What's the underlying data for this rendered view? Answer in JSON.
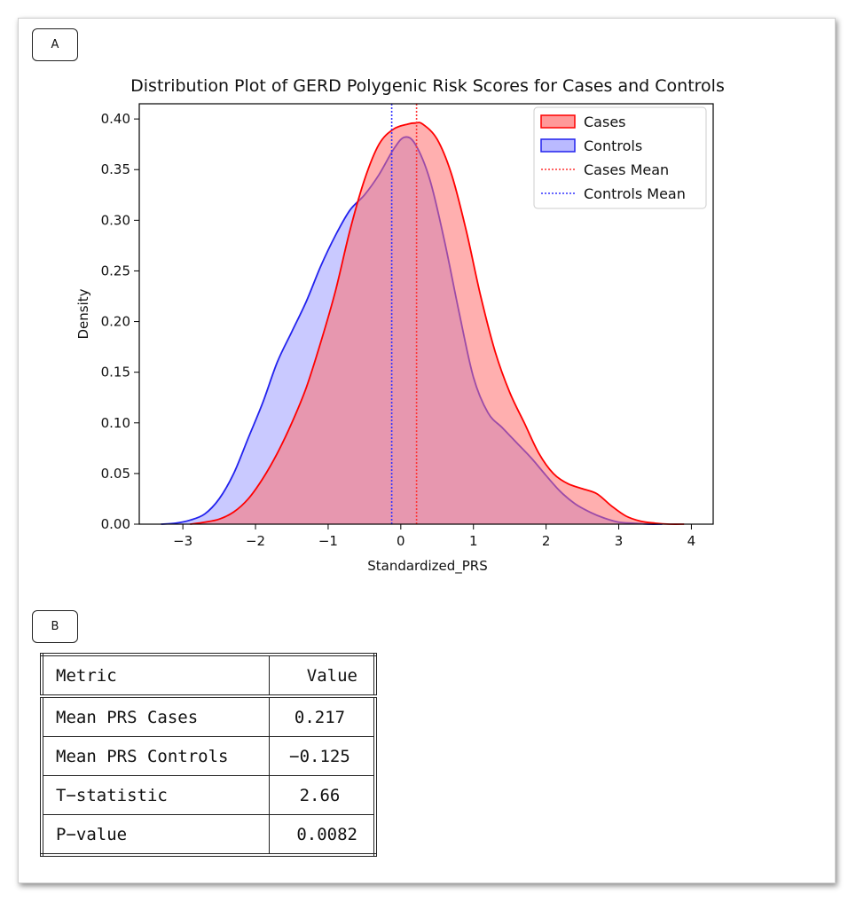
{
  "panels": {
    "a_label": "A",
    "b_label": "B"
  },
  "chart_data": {
    "type": "area",
    "title": "Distribution Plot of GERD Polygenic Risk Scores for Cases and Controls",
    "xlabel": "Standardized_PRS",
    "ylabel": "Density",
    "xlim": [
      -3.6,
      4.3
    ],
    "ylim": [
      0,
      0.415
    ],
    "xticks": [
      -3,
      -2,
      -1,
      0,
      1,
      2,
      3,
      4
    ],
    "xtick_labels": [
      "−3",
      "−2",
      "−1",
      "0",
      "1",
      "2",
      "3",
      "4"
    ],
    "yticks": [
      0.0,
      0.05,
      0.1,
      0.15,
      0.2,
      0.25,
      0.3,
      0.35,
      0.4
    ],
    "ytick_labels": [
      "0.00",
      "0.05",
      "0.10",
      "0.15",
      "0.20",
      "0.25",
      "0.30",
      "0.35",
      "0.40"
    ],
    "legend_position": "top-right",
    "grid": false,
    "series": [
      {
        "name": "Cases",
        "color": "#ff0000",
        "fill": "#ff6e6e",
        "x": [
          -2.9,
          -2.7,
          -2.5,
          -2.3,
          -2.1,
          -1.9,
          -1.7,
          -1.5,
          -1.3,
          -1.1,
          -0.9,
          -0.7,
          -0.5,
          -0.3,
          -0.1,
          0.1,
          0.2,
          0.3,
          0.5,
          0.7,
          0.9,
          1.1,
          1.3,
          1.5,
          1.7,
          1.9,
          2.1,
          2.3,
          2.5,
          2.7,
          2.9,
          3.1,
          3.3,
          3.5,
          3.7,
          3.9
        ],
        "y": [
          0.0,
          0.002,
          0.005,
          0.012,
          0.025,
          0.045,
          0.07,
          0.1,
          0.135,
          0.18,
          0.23,
          0.29,
          0.34,
          0.375,
          0.39,
          0.395,
          0.396,
          0.395,
          0.38,
          0.345,
          0.29,
          0.225,
          0.17,
          0.13,
          0.1,
          0.07,
          0.05,
          0.04,
          0.035,
          0.03,
          0.018,
          0.008,
          0.003,
          0.001,
          0.0,
          0.0
        ]
      },
      {
        "name": "Controls",
        "color": "#2222ee",
        "fill": "#9c9cff",
        "x": [
          -3.3,
          -3.1,
          -2.9,
          -2.7,
          -2.5,
          -2.3,
          -2.1,
          -1.9,
          -1.7,
          -1.5,
          -1.3,
          -1.1,
          -0.9,
          -0.7,
          -0.5,
          -0.3,
          -0.1,
          0.05,
          0.2,
          0.4,
          0.6,
          0.8,
          1.0,
          1.2,
          1.4,
          1.6,
          1.8,
          2.0,
          2.2,
          2.4,
          2.6,
          2.8,
          3.0,
          3.2,
          3.4,
          3.6
        ],
        "y": [
          0.0,
          0.001,
          0.004,
          0.01,
          0.025,
          0.05,
          0.085,
          0.12,
          0.16,
          0.19,
          0.22,
          0.255,
          0.285,
          0.31,
          0.325,
          0.345,
          0.37,
          0.382,
          0.375,
          0.34,
          0.28,
          0.21,
          0.145,
          0.11,
          0.095,
          0.08,
          0.065,
          0.048,
          0.032,
          0.02,
          0.012,
          0.006,
          0.002,
          0.001,
          0.0,
          0.0
        ]
      }
    ],
    "mean_lines": [
      {
        "name": "Cases Mean",
        "x": 0.217,
        "color": "#ff3333"
      },
      {
        "name": "Controls Mean",
        "x": -0.125,
        "color": "#3333ff"
      }
    ]
  },
  "table": {
    "header": {
      "metric": "Metric",
      "value": "Value"
    },
    "rows": [
      {
        "metric": "Mean PRS Cases",
        "value": "0.217"
      },
      {
        "metric": "Mean PRS Controls",
        "value": "−0.125"
      },
      {
        "metric": "T−statistic",
        "value": "2.66"
      },
      {
        "metric": "P−value",
        "value": "0.0082"
      }
    ]
  }
}
